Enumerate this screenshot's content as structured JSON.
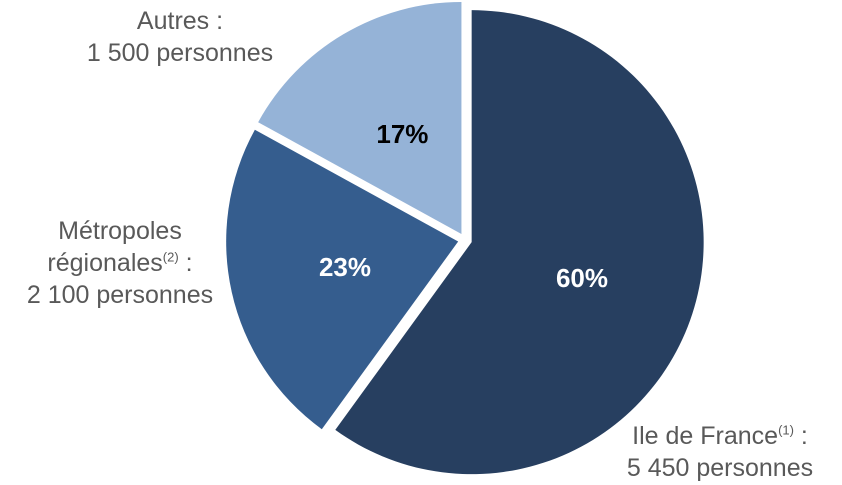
{
  "chart_data": {
    "type": "pie",
    "slices": [
      {
        "value": 60,
        "label": "60%",
        "name_text": "Ile de France",
        "note": "(1)",
        "suffix": " :",
        "count_text": "5 450 personnes",
        "color": "#273F60",
        "text_color": "#FFFFFF"
      },
      {
        "value": 23,
        "label": "23%",
        "name_text": "Métropoles",
        "name_text_2": "régionales",
        "note": "(2)",
        "suffix": " :",
        "count_text": "2 100 personnes",
        "color": "#355D8E",
        "text_color": "#FFFFFF"
      },
      {
        "value": 17,
        "label": "17%",
        "name_text": "Autres :",
        "count_text": "1 500 personnes",
        "color": "#95B3D7",
        "text_color": "#000000"
      }
    ]
  }
}
